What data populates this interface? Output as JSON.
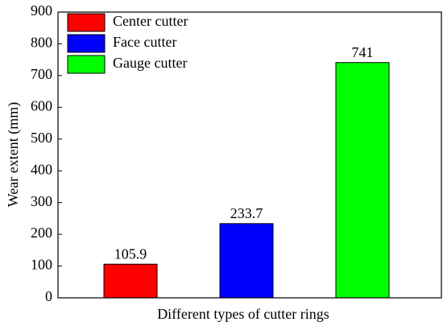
{
  "chart_data": {
    "type": "bar",
    "x_label": "Different types of cutter rings",
    "y_label": "Wear extent (mm)",
    "categories": [
      null,
      null,
      null
    ],
    "series": [
      {
        "name": "Center cutter",
        "color": "#ff0000",
        "values": [
          105.9,
          null,
          null
        ]
      },
      {
        "name": "Face cutter",
        "color": "#0000ff",
        "values": [
          null,
          233.7,
          null
        ]
      },
      {
        "name": "Gauge cutter",
        "color": "#00ff00",
        "values": [
          null,
          null,
          741
        ]
      }
    ],
    "ylim": [
      0,
      900
    ],
    "yticks": [
      0,
      100,
      200,
      300,
      400,
      500,
      600,
      700,
      800,
      900
    ],
    "legend": "upper left",
    "value_labels_shown": true
  }
}
